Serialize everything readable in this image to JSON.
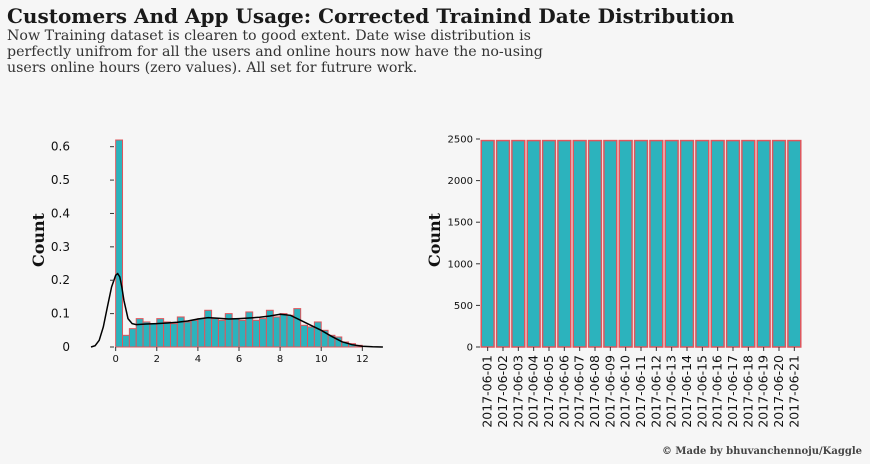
{
  "title": "Customers And App Usage: Corrected Trainind Date Distribution",
  "subtitle": "Now Training dataset is clearen to good extent. Date wise distribution is perfectly unifrom for all the users and online hours now have the no-using users online hours (zero values). All set for futrure work.",
  "credit": "© Made by bhuvanchennoju/Kaggle",
  "colors": {
    "bar_fill": "#2cb3bd",
    "bar_edge": "#e0555c",
    "kde_line": "#000000",
    "background": "#f6f6f6"
  },
  "chart_data": [
    {
      "type": "bar",
      "subtype": "histogram-with-kde",
      "ylabel": "Count",
      "xlabel": "",
      "xlim": [
        -1.2,
        13.2
      ],
      "ylim": [
        0,
        0.65
      ],
      "xticks": [
        0,
        2,
        4,
        6,
        8,
        10,
        12
      ],
      "yticks": [
        0.0,
        0.1,
        0.2,
        0.3,
        0.4,
        0.5,
        0.6
      ],
      "bin_width": 0.3333,
      "bins_start": [
        0,
        0.333,
        0.667,
        1.0,
        1.333,
        1.667,
        2.0,
        2.333,
        2.667,
        3.0,
        3.333,
        3.667,
        4.0,
        4.333,
        4.667,
        5.0,
        5.333,
        5.667,
        6.0,
        6.333,
        6.667,
        7.0,
        7.333,
        7.667,
        8.0,
        8.333,
        8.667,
        9.0,
        9.333,
        9.667,
        10.0,
        10.333,
        10.667,
        11.0,
        11.333,
        11.667
      ],
      "values": [
        0.62,
        0.035,
        0.055,
        0.085,
        0.075,
        0.07,
        0.085,
        0.075,
        0.07,
        0.09,
        0.075,
        0.08,
        0.085,
        0.11,
        0.085,
        0.08,
        0.1,
        0.085,
        0.08,
        0.105,
        0.08,
        0.085,
        0.11,
        0.09,
        0.1,
        0.095,
        0.115,
        0.065,
        0.06,
        0.075,
        0.05,
        0.035,
        0.03,
        0.015,
        0.01,
        0.005
      ],
      "kde": {
        "x": [
          -1.2,
          -1.0,
          -0.8,
          -0.6,
          -0.4,
          -0.2,
          0.0,
          0.1,
          0.2,
          0.3,
          0.4,
          0.6,
          0.8,
          1.0,
          1.5,
          2.0,
          2.5,
          3.0,
          3.5,
          4.0,
          4.5,
          5.0,
          5.5,
          6.0,
          6.5,
          7.0,
          7.5,
          8.0,
          8.5,
          9.0,
          9.5,
          10.0,
          10.5,
          11.0,
          11.5,
          12.0,
          12.5,
          13.0
        ],
        "y": [
          0.0,
          0.004,
          0.02,
          0.06,
          0.12,
          0.18,
          0.215,
          0.22,
          0.21,
          0.18,
          0.14,
          0.085,
          0.07,
          0.067,
          0.069,
          0.07,
          0.072,
          0.074,
          0.078,
          0.084,
          0.088,
          0.086,
          0.084,
          0.085,
          0.087,
          0.089,
          0.093,
          0.098,
          0.095,
          0.08,
          0.065,
          0.05,
          0.032,
          0.016,
          0.007,
          0.002,
          0.0005,
          0.0
        ]
      }
    },
    {
      "type": "bar",
      "ylabel": "Count",
      "xlabel": "",
      "ylim": [
        0,
        2500
      ],
      "yticks": [
        0,
        500,
        1000,
        1500,
        2000,
        2500
      ],
      "categories": [
        "2017-06-01",
        "2017-06-02",
        "2017-06-03",
        "2017-06-04",
        "2017-06-05",
        "2017-06-06",
        "2017-06-07",
        "2017-06-08",
        "2017-06-09",
        "2017-06-10",
        "2017-06-11",
        "2017-06-12",
        "2017-06-13",
        "2017-06-14",
        "2017-06-15",
        "2017-06-16",
        "2017-06-17",
        "2017-06-18",
        "2017-06-19",
        "2017-06-20",
        "2017-06-21"
      ],
      "values": [
        2481,
        2481,
        2481,
        2481,
        2481,
        2481,
        2481,
        2481,
        2481,
        2481,
        2481,
        2481,
        2481,
        2481,
        2481,
        2481,
        2481,
        2481,
        2481,
        2481,
        2481
      ]
    }
  ]
}
